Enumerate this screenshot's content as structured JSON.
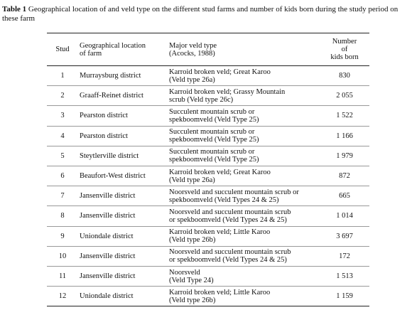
{
  "caption": {
    "label": "Table 1",
    "text": "Geographical location of and veld type on the different stud farms and number of kids born during the study period on these farm"
  },
  "table": {
    "header": [
      "Stud",
      [
        "Geographical location",
        "of farm"
      ],
      [
        "Major veld type",
        "(Acocks, 1988)"
      ],
      [
        "Number",
        "of",
        "kids born"
      ]
    ],
    "rows": [
      [
        "1",
        "Murraysburg district",
        [
          "Karroid broken veld; Great Karoo",
          "(Veld type 26a)"
        ],
        "830"
      ],
      [
        "2",
        "Graaff-Reinet district",
        [
          "Karroid broken veld; Grassy Mountain",
          "scrub (Veld type 26c)"
        ],
        "2 055"
      ],
      [
        "3",
        "Pearston district",
        [
          "Succulent mountain scrub or",
          "spekboomveld (Veld Type 25)"
        ],
        "1 522"
      ],
      [
        "4",
        "Pearston district",
        [
          "Succulent mountain scrub or",
          "spekboomveld (Veld Type 25)"
        ],
        "1 166"
      ],
      [
        "5",
        "Steytlerville district",
        [
          "Succulent mountain scrub or",
          "spekboomveld (Veld Type 25)"
        ],
        "1 979"
      ],
      [
        "6",
        "Beaufort-West district",
        [
          "Karroid broken veld; Great Karoo",
          "(Veld type 26a)"
        ],
        "872"
      ],
      [
        "7",
        "Jansenville district",
        [
          "Noorsveld and succulent mountain scrub or",
          "spekboomveld (Veld Types 24 & 25)"
        ],
        "665"
      ],
      [
        "8",
        "Jansenville district",
        [
          "Noorsveld and succulent mountain scrub",
          "or spekboomveld (Veld Types 24 & 25)"
        ],
        "1 014"
      ],
      [
        "9",
        "Uniondale district",
        [
          "Karroid broken veld; Little Karoo",
          "(Veld type 26b)"
        ],
        "3 697"
      ],
      [
        "10",
        "Jansenville district",
        [
          "Noorsveld and succulent mountain scrub",
          "or spekboomveld (Veld Types 24 & 25)"
        ],
        "172"
      ],
      [
        "11",
        "Jansenville district",
        [
          "Noorsveld",
          "(Veld Type 24)"
        ],
        "1 513"
      ],
      [
        "12",
        "Uniondale district",
        [
          "Karroid broken veld; Little Karoo",
          "(Veld type 26b)"
        ],
        "1 159"
      ]
    ]
  }
}
